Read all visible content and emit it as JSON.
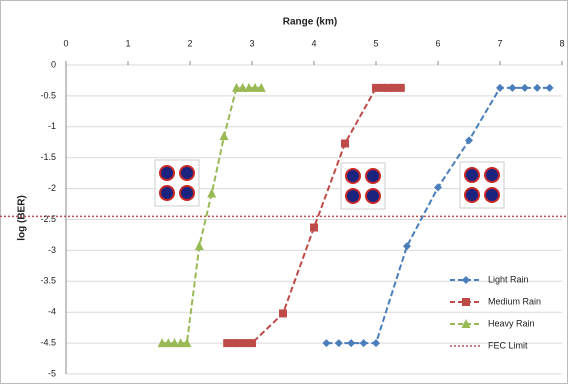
{
  "chart_data": {
    "type": "line",
    "x_label": "Range (km)",
    "y_label": "log (BER)",
    "xlim": [
      0,
      8
    ],
    "xticks": [
      0,
      1,
      2,
      3,
      4,
      5,
      6,
      7,
      8
    ],
    "ylim": [
      -5,
      0
    ],
    "yticks": [
      0,
      -0.5,
      -1,
      -1.5,
      -2,
      -2.5,
      -3,
      -3.5,
      -4,
      -4.5,
      -5
    ],
    "grid": true,
    "legend": "lower right",
    "series": [
      {
        "name": "Light Rain",
        "color": "#4a7ebb",
        "marker": "diamond",
        "x": [
          4.2,
          4.4,
          4.6,
          4.8,
          5.0,
          5.5,
          6.0,
          6.5,
          7.0,
          7.2,
          7.4,
          7.6,
          7.8
        ],
        "values": [
          -4.5,
          -4.5,
          -4.5,
          -4.5,
          -4.5,
          -2.93,
          -1.98,
          -1.22,
          -0.37,
          -0.37,
          -0.37,
          -0.37,
          -0.37
        ]
      },
      {
        "name": "Medium Rain",
        "color": "#be4b48",
        "marker": "square",
        "x": [
          2.6,
          2.7,
          2.8,
          2.9,
          3.0,
          3.5,
          4.0,
          4.5,
          5.0,
          5.1,
          5.2,
          5.3,
          5.4
        ],
        "values": [
          -4.5,
          -4.5,
          -4.5,
          -4.5,
          -4.5,
          -4.02,
          -2.63,
          -1.27,
          -0.37,
          -0.37,
          -0.37,
          -0.37,
          -0.37
        ]
      },
      {
        "name": "Heavy Rain",
        "color": "#98b954",
        "marker": "triangle",
        "x": [
          1.55,
          1.65,
          1.75,
          1.85,
          1.95,
          2.15,
          2.35,
          2.55,
          2.75,
          2.85,
          2.95,
          3.05,
          3.15
        ],
        "values": [
          -4.5,
          -4.5,
          -4.5,
          -4.5,
          -4.5,
          -2.93,
          -2.08,
          -1.15,
          -0.37,
          -0.37,
          -0.37,
          -0.37,
          -0.37
        ]
      }
    ],
    "reference_line": {
      "name": "FEC Limit",
      "value": -2.45,
      "color": "#c0504d"
    }
  }
}
